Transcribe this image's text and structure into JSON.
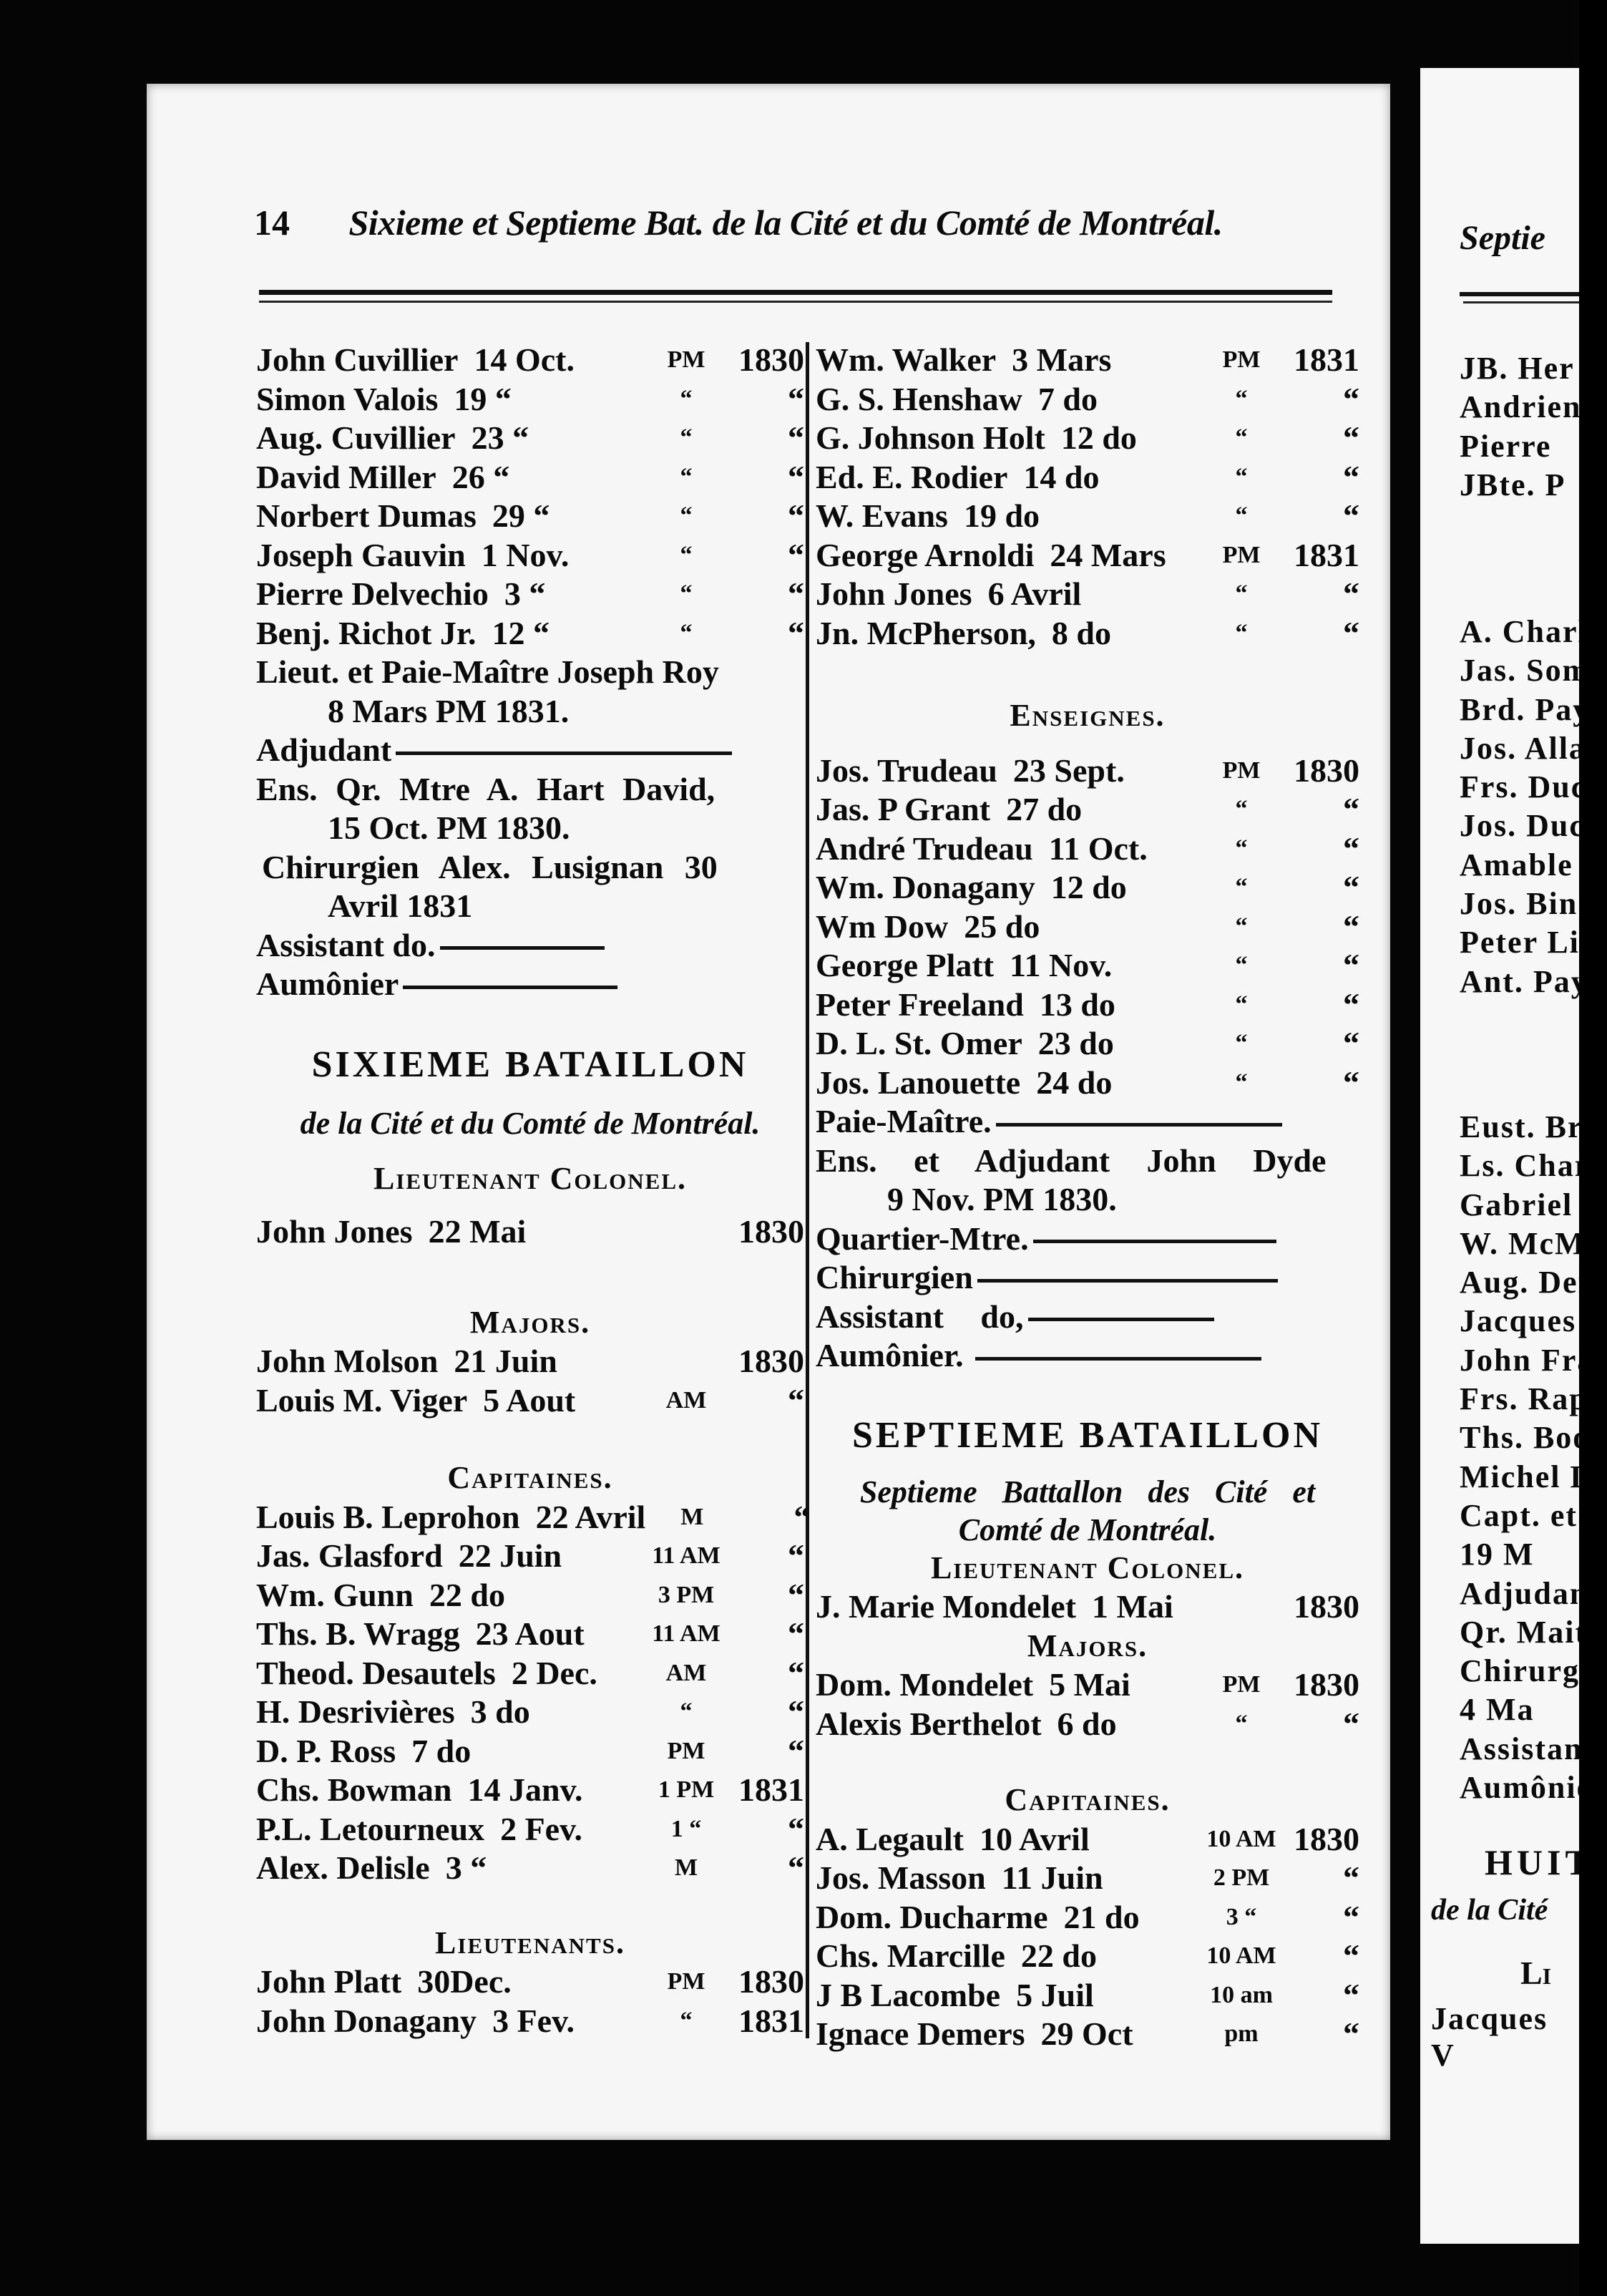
{
  "header": {
    "page_number": "14",
    "running_head": "Sixieme et Septieme Bat. de la Cité et du Comté de Montréal."
  },
  "left_column": {
    "lieutenants_continued": [
      {
        "name": "John Cuvillier",
        "date": "14 Oct.",
        "time": "PM",
        "year": "1830"
      },
      {
        "name": "Simon Valois",
        "date": "19 “",
        "time": "“",
        "year": "“"
      },
      {
        "name": "Aug. Cuvillier",
        "date": "23 “",
        "time": "“",
        "year": "“"
      },
      {
        "name": "David Miller",
        "date": "26 “",
        "time": "“",
        "year": "“"
      },
      {
        "name": "Norbert Dumas",
        "date": "29 “",
        "time": "“",
        "year": "“"
      },
      {
        "name": "Joseph Gauvin",
        "date": "1 Nov.",
        "time": "“",
        "year": "“"
      },
      {
        "name": "Pierre Delvechio",
        "date": "3 “",
        "time": "“",
        "year": "“"
      },
      {
        "name": "Benj. Richot Jr.",
        "date": "12 “",
        "time": "“",
        "year": "“"
      }
    ],
    "staff": {
      "paymaster": "Lieut. et Paie-Maître Joseph Roy",
      "paymaster_date": "8 Mars PM 1831.",
      "adjutant": "Adjudant",
      "quartermaster": "Ens. Qr. Mtre A. Hart David,",
      "quartermaster_date": "15 Oct. PM 1830.",
      "surgeon": "Chirurgien Alex. Lusignan 30",
      "surgeon_date": "Avril 1831",
      "assistant": "Assistant do.",
      "chaplain": "Aumônier"
    },
    "sixth_battalion": {
      "title": "SIXIEME BATAILLON",
      "subtitle": "de la Cité et du Comté de Montréal.",
      "lt_colonel_heading": "Lieutenant Colonel.",
      "lt_colonel": [
        {
          "name": "John Jones",
          "date": "22 Mai",
          "time": "",
          "year": "1830"
        }
      ],
      "majors_heading": "Majors.",
      "majors": [
        {
          "name": "John Molson",
          "date": "21 Juin",
          "time": "",
          "year": "1830"
        },
        {
          "name": "Louis M. Viger",
          "date": "5 Aout",
          "time": "AM",
          "year": "“"
        }
      ],
      "captains_heading": "Capitaines.",
      "captains": [
        {
          "name": "Louis B. Leprohon",
          "date": "22 Avril",
          "time": "M",
          "year": "“"
        },
        {
          "name": "Jas. Glasford",
          "date": "22 Juin",
          "time": "11 AM",
          "year": "“"
        },
        {
          "name": "Wm. Gunn",
          "date": "22 do",
          "time": "3 PM",
          "year": "“"
        },
        {
          "name": "Ths. B. Wragg",
          "date": "23 Aout",
          "time": "11 AM",
          "year": "“"
        },
        {
          "name": "Theod. Desautels",
          "date": "2 Dec.",
          "time": "AM",
          "year": "“"
        },
        {
          "name": "H. Desrivières",
          "date": "3 do",
          "time": "“",
          "year": "“"
        },
        {
          "name": "D. P. Ross",
          "date": "7 do",
          "time": "PM",
          "year": "“"
        },
        {
          "name": "Chs. Bowman",
          "date": "14 Janv.",
          "time": "1 PM",
          "year": "1831"
        },
        {
          "name": "P.L. Letourneux",
          "date": "2 Fev.",
          "time": "1 “",
          "year": "“"
        },
        {
          "name": "Alex. Delisle",
          "date": "3 “",
          "time": "M",
          "year": "“"
        }
      ],
      "lieutenants_heading": "Lieutenants.",
      "lieutenants": [
        {
          "name": "John Platt",
          "date": "30Dec.",
          "time": "PM",
          "year": "1830"
        },
        {
          "name": "John Donagany",
          "date": "3 Fev.",
          "time": "“",
          "year": "1831"
        }
      ]
    }
  },
  "right_column": {
    "lieutenants_continued": [
      {
        "name": "Wm. Walker",
        "date": "3 Mars",
        "time": "PM",
        "year": "1831"
      },
      {
        "name": "G. S. Henshaw",
        "date": "7 do",
        "time": "“",
        "year": "“"
      },
      {
        "name": "G. Johnson Holt",
        "date": "12 do",
        "time": "“",
        "year": "“"
      },
      {
        "name": "Ed. E. Rodier",
        "date": "14 do",
        "time": "“",
        "year": "“"
      },
      {
        "name": "W. Evans",
        "date": "19 do",
        "time": "“",
        "year": "“"
      },
      {
        "name": "George Arnoldi",
        "date": "24 Mars",
        "time": "PM",
        "year": "1831"
      },
      {
        "name": "John Jones",
        "date": "6 Avril",
        "time": "“",
        "year": "“"
      },
      {
        "name": "Jn. McPherson,",
        "date": "8 do",
        "time": "“",
        "year": "“"
      }
    ],
    "ensigns_heading": "Enseignes.",
    "ensigns": [
      {
        "name": "Jos. Trudeau",
        "date": "23 Sept.",
        "time": "PM",
        "year": "1830"
      },
      {
        "name": "Jas. P Grant",
        "date": "27 do",
        "time": "“",
        "year": "“"
      },
      {
        "name": "André Trudeau",
        "date": "11 Oct.",
        "time": "“",
        "year": "“"
      },
      {
        "name": "Wm. Donagany",
        "date": "12 do",
        "time": "“",
        "year": "“"
      },
      {
        "name": "Wm Dow",
        "date": "25 do",
        "time": "“",
        "year": "“"
      },
      {
        "name": "George Platt",
        "date": "11 Nov.",
        "time": "“",
        "year": "“"
      },
      {
        "name": "Peter Freeland",
        "date": "13 do",
        "time": "“",
        "year": "“"
      },
      {
        "name": "D. L. St. Omer",
        "date": "23 do",
        "time": "“",
        "year": "“"
      },
      {
        "name": "Jos. Lanouette",
        "date": "24 do",
        "time": "“",
        "year": "“"
      }
    ],
    "staff": {
      "paymaster": "Paie-Maître.",
      "adjutant": "Ens. et Adjudant John Dyde",
      "adjutant_date": "9 Nov. PM 1830.",
      "quartermaster": "Quartier-Mtre.",
      "surgeon": "Chirurgien",
      "assistant": "Assistant do,",
      "chaplain": "Aumônier."
    },
    "seventh_battalion": {
      "title": "SEPTIEME BATAILLON",
      "subtitle_line1": "Septieme Battallon des Cité et",
      "subtitle_line2": "Comté de Montréal.",
      "lt_colonel_heading": "Lieutenant Colonel.",
      "lt_colonel": [
        {
          "name": "J. Marie Mondelet",
          "date": "1 Mai",
          "time": "",
          "year": "1830"
        }
      ],
      "majors_heading": "Majors.",
      "majors": [
        {
          "name": "Dom. Mondelet",
          "date": "5 Mai",
          "time": "PM",
          "year": "1830"
        },
        {
          "name": "Alexis Berthelot",
          "date": "6 do",
          "time": "“",
          "year": "“"
        }
      ],
      "captains_heading": "Capitaines.",
      "captains": [
        {
          "name": "A. Legault",
          "date": "10 Avril",
          "time": "10 AM",
          "year": "1830"
        },
        {
          "name": "Jos. Masson",
          "date": "11 Juin",
          "time": "2 PM",
          "year": "“"
        },
        {
          "name": "Dom. Ducharme",
          "date": "21 do",
          "time": "3 “",
          "year": "“"
        },
        {
          "name": "Chs. Marcille",
          "date": "22 do",
          "time": "10 AM",
          "year": "“"
        },
        {
          "name": "J B Lacombe",
          "date": "5 Juil",
          "time": "10 am",
          "year": "“"
        },
        {
          "name": "Ignace Demers",
          "date": "29 Oct",
          "time": "pm",
          "year": "“"
        }
      ]
    }
  },
  "facing_page_fragment": {
    "running_head": "Septie",
    "group1": [
      "JB. Her",
      "Andrien",
      "Pierre",
      "JBte. P"
    ],
    "group2": [
      "A. Charl",
      "Jas. Som",
      "Brd. Pay",
      "Jos. Alla",
      "Frs. Duc",
      "Jos. Duc",
      "Amable",
      "Jos. Bin",
      "Peter Li",
      "Ant. Pay"
    ],
    "group3": [
      "Eust. Bru",
      "Ls. Charb",
      "Gabriel V",
      "W. McMa",
      "Aug. Den",
      "Jacques P",
      "John Fras",
      "Frs. Rapi",
      "Ths. Boot",
      "Michel Le",
      "Capt. et F",
      "19 M",
      "Adjudant.",
      "Qr. Maitr",
      "Chirurgien",
      "4 Ma",
      "Assistant",
      "Aumônier."
    ],
    "heading": "HUITI",
    "subtitle": "de la Cité",
    "sc_heading": "Li",
    "last_line": "Jacques V"
  }
}
